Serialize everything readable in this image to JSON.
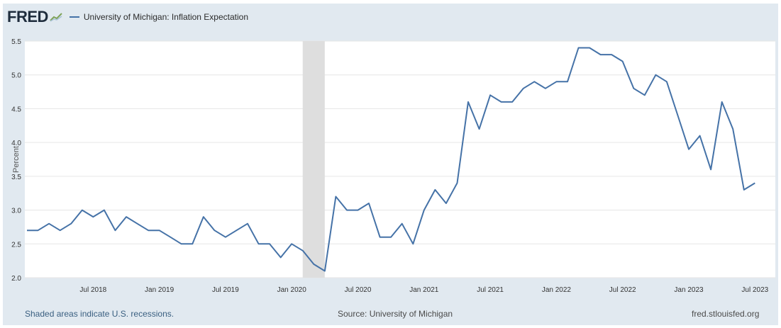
{
  "header": {
    "logo": "FRED",
    "legend_label": "University of Michigan: Inflation Expectation"
  },
  "footer": {
    "recession_note": "Shaded areas indicate U.S. recessions.",
    "source": "Source: University of Michigan",
    "site": "fred.stlouisfed.org"
  },
  "chart_data": {
    "type": "line",
    "ylabel": "Percent",
    "ylim": [
      2.0,
      5.5
    ],
    "yticks": [
      "2.0",
      "2.5",
      "3.0",
      "3.5",
      "4.0",
      "4.5",
      "5.0",
      "5.5"
    ],
    "xticks": [
      "Jul 2018",
      "Jan 2019",
      "Jul 2019",
      "Jan 2020",
      "Jul 2020",
      "Jan 2021",
      "Jul 2021",
      "Jan 2022",
      "Jul 2022",
      "Jan 2023",
      "Jul 2023"
    ],
    "grid": true,
    "legend_position": "top-left",
    "recession": {
      "start": "2020-02",
      "end": "2020-04"
    },
    "series": [
      {
        "name": "University of Michigan: Inflation Expectation",
        "color": "#4572a7",
        "x": [
          "2018-01",
          "2018-02",
          "2018-03",
          "2018-04",
          "2018-05",
          "2018-06",
          "2018-07",
          "2018-08",
          "2018-09",
          "2018-10",
          "2018-11",
          "2018-12",
          "2019-01",
          "2019-02",
          "2019-03",
          "2019-04",
          "2019-05",
          "2019-06",
          "2019-07",
          "2019-08",
          "2019-09",
          "2019-10",
          "2019-11",
          "2019-12",
          "2020-01",
          "2020-02",
          "2020-03",
          "2020-04",
          "2020-05",
          "2020-06",
          "2020-07",
          "2020-08",
          "2020-09",
          "2020-10",
          "2020-11",
          "2020-12",
          "2021-01",
          "2021-02",
          "2021-03",
          "2021-04",
          "2021-05",
          "2021-06",
          "2021-07",
          "2021-08",
          "2021-09",
          "2021-10",
          "2021-11",
          "2021-12",
          "2022-01",
          "2022-02",
          "2022-03",
          "2022-04",
          "2022-05",
          "2022-06",
          "2022-07",
          "2022-08",
          "2022-09",
          "2022-10",
          "2022-11",
          "2022-12",
          "2023-01",
          "2023-02",
          "2023-03",
          "2023-04",
          "2023-05",
          "2023-06",
          "2023-07"
        ],
        "values": [
          2.7,
          2.7,
          2.8,
          2.7,
          2.8,
          3.0,
          2.9,
          3.0,
          2.7,
          2.9,
          2.8,
          2.7,
          2.7,
          2.6,
          2.5,
          2.5,
          2.9,
          2.7,
          2.6,
          2.7,
          2.8,
          2.5,
          2.5,
          2.3,
          2.5,
          2.4,
          2.2,
          2.1,
          3.2,
          3.0,
          3.0,
          3.1,
          2.6,
          2.6,
          2.8,
          2.5,
          3.0,
          3.3,
          3.1,
          3.4,
          4.6,
          4.2,
          4.7,
          4.6,
          4.6,
          4.8,
          4.9,
          4.8,
          4.9,
          4.9,
          5.4,
          5.4,
          5.3,
          5.3,
          5.2,
          4.8,
          4.7,
          5.0,
          4.9,
          4.4,
          3.9,
          4.1,
          3.6,
          4.6,
          4.2,
          3.3,
          3.4
        ]
      }
    ]
  }
}
